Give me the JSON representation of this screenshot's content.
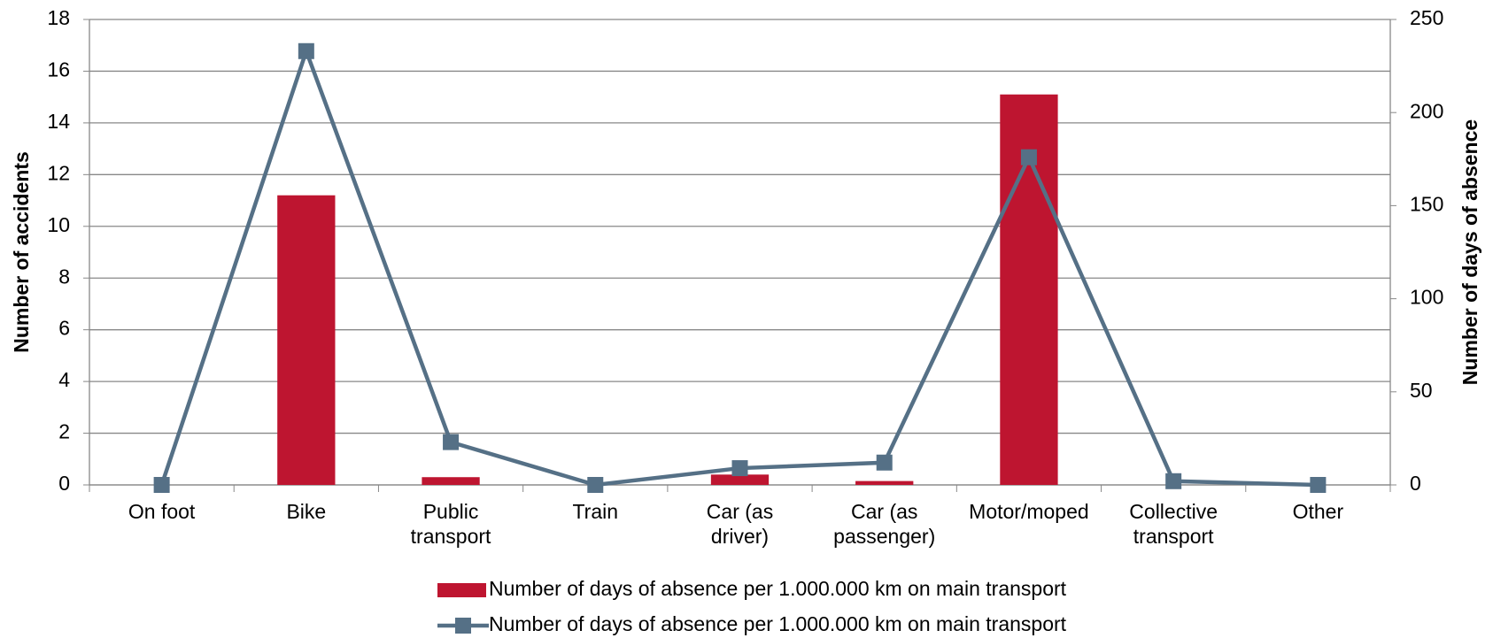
{
  "chart_data": {
    "type": "bar_line",
    "categories": [
      "On foot",
      "Bike",
      "Public transport",
      "Train",
      "Car (as driver)",
      "Car (as passenger)",
      "Motor/moped",
      "Collective transport",
      "Other"
    ],
    "series": [
      {
        "name": "Number of days of absence per 1.000.000 km on main transport",
        "type": "bar",
        "color": "#be1530",
        "values": [
          0,
          11.2,
          0.3,
          0,
          0.4,
          0.15,
          15.1,
          0,
          0
        ]
      },
      {
        "name": "Number of days of absence per 1.000.000 km on main transport",
        "type": "line",
        "axis": "y2",
        "color": "#557086",
        "values": [
          0,
          233,
          23,
          0,
          9,
          12,
          176,
          2,
          0
        ]
      }
    ],
    "ylabel": "Number of accidents",
    "y2label": "Number of days of absence",
    "ylim": [
      0,
      18
    ],
    "yticks": [
      0,
      2,
      4,
      6,
      8,
      10,
      12,
      14,
      16,
      18
    ],
    "y2lim": [
      0,
      250
    ],
    "y2ticks": [
      0,
      50,
      100,
      150,
      200,
      250
    ],
    "grid": true,
    "legend": "bottom"
  }
}
